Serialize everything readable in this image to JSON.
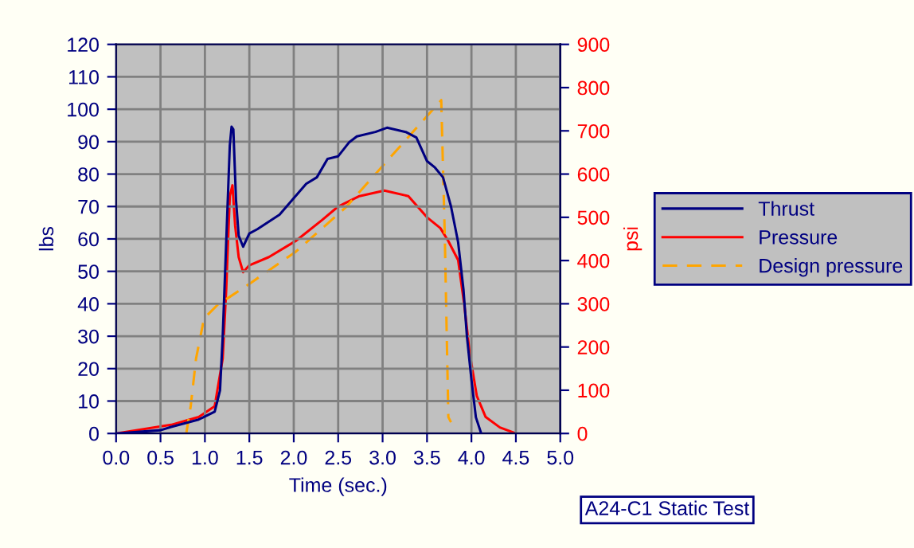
{
  "chart_data": {
    "type": "line",
    "xlabel": "Time (sec.)",
    "ylabel": "lbs",
    "y2label": "psi",
    "xlim": [
      0,
      5
    ],
    "xticks": [
      {
        "value": 0,
        "label": "0.0"
      },
      {
        "value": 0.5,
        "label": "0.5"
      },
      {
        "value": 1,
        "label": "1.0"
      },
      {
        "value": 1.5,
        "label": "1.5"
      },
      {
        "value": 2,
        "label": "2.0"
      },
      {
        "value": 2.5,
        "label": "2.5"
      },
      {
        "value": 3,
        "label": "3.0"
      },
      {
        "value": 3.5,
        "label": "3.5"
      },
      {
        "value": 4,
        "label": "4.0"
      },
      {
        "value": 4.5,
        "label": "4.5"
      },
      {
        "value": 5,
        "label": "5.0"
      }
    ],
    "ylim": [
      0,
      120
    ],
    "yticks": [
      0,
      10,
      20,
      30,
      40,
      50,
      60,
      70,
      80,
      90,
      100,
      110,
      120
    ],
    "y2lim": [
      0,
      900
    ],
    "y2ticks": [
      0,
      100,
      200,
      300,
      400,
      500,
      600,
      700,
      800,
      900
    ],
    "grid": true,
    "legend": "right",
    "marker": "none",
    "annotations": [
      "A24-C1 Static Test"
    ],
    "series": [
      {
        "name": "Thrust",
        "color": "#000080",
        "line_style": "solid",
        "x": [
          0,
          0.5,
          0.62,
          0.93,
          1.11,
          1.17,
          1.2,
          1.28,
          1.3,
          1.32,
          1.35,
          1.38,
          1.43,
          1.5,
          1.59,
          1.84,
          2.14,
          2.26,
          2.38,
          2.5,
          2.62,
          2.71,
          2.92,
          3.05,
          3.26,
          3.38,
          3.5,
          3.59,
          3.68,
          3.77,
          3.85,
          3.91,
          3.95,
          4.0,
          4.05,
          4.11
        ],
        "values": [
          0,
          1,
          2,
          4.3,
          6.7,
          13.3,
          29.7,
          88.8,
          94.6,
          93.8,
          72,
          61,
          57.6,
          61.7,
          63,
          67.5,
          77,
          79,
          84.7,
          85.5,
          89.7,
          91.6,
          93,
          94.3,
          93,
          91.3,
          84,
          82,
          79,
          70,
          59,
          44.5,
          29.7,
          16.6,
          5,
          0
        ]
      },
      {
        "name": "Pressure",
        "color": "#ff0000",
        "line_style": "solid",
        "axis": "y2",
        "x": [
          0,
          0.62,
          0.93,
          1.11,
          1.2,
          1.24,
          1.28,
          1.31,
          1.34,
          1.38,
          1.43,
          1.5,
          1.72,
          2.02,
          2.32,
          2.5,
          2.74,
          3.02,
          3.29,
          3.5,
          3.65,
          3.74,
          3.85,
          3.92,
          3.98,
          4.06,
          4.16,
          4.32,
          4.5
        ],
        "values": [
          0,
          20,
          38,
          63,
          173,
          334,
          549,
          574,
          481,
          408,
          373,
          389,
          408,
          445,
          494,
          525,
          549,
          562,
          549,
          500,
          475,
          445,
          401,
          297,
          186,
          87,
          38,
          14,
          0
        ]
      },
      {
        "name": "Design pressure",
        "color": "#ffa500",
        "line_style": "dashed",
        "axis": "y2",
        "x": [
          0.79,
          0.84,
          0.9,
          0.99,
          1.14,
          1.5,
          2.02,
          2.29,
          2.59,
          3.66,
          3.7,
          3.74,
          3.77
        ],
        "values": [
          0,
          63,
          173,
          266,
          297,
          346,
          420,
          469,
          524,
          771,
          457,
          38,
          26
        ]
      }
    ]
  }
}
